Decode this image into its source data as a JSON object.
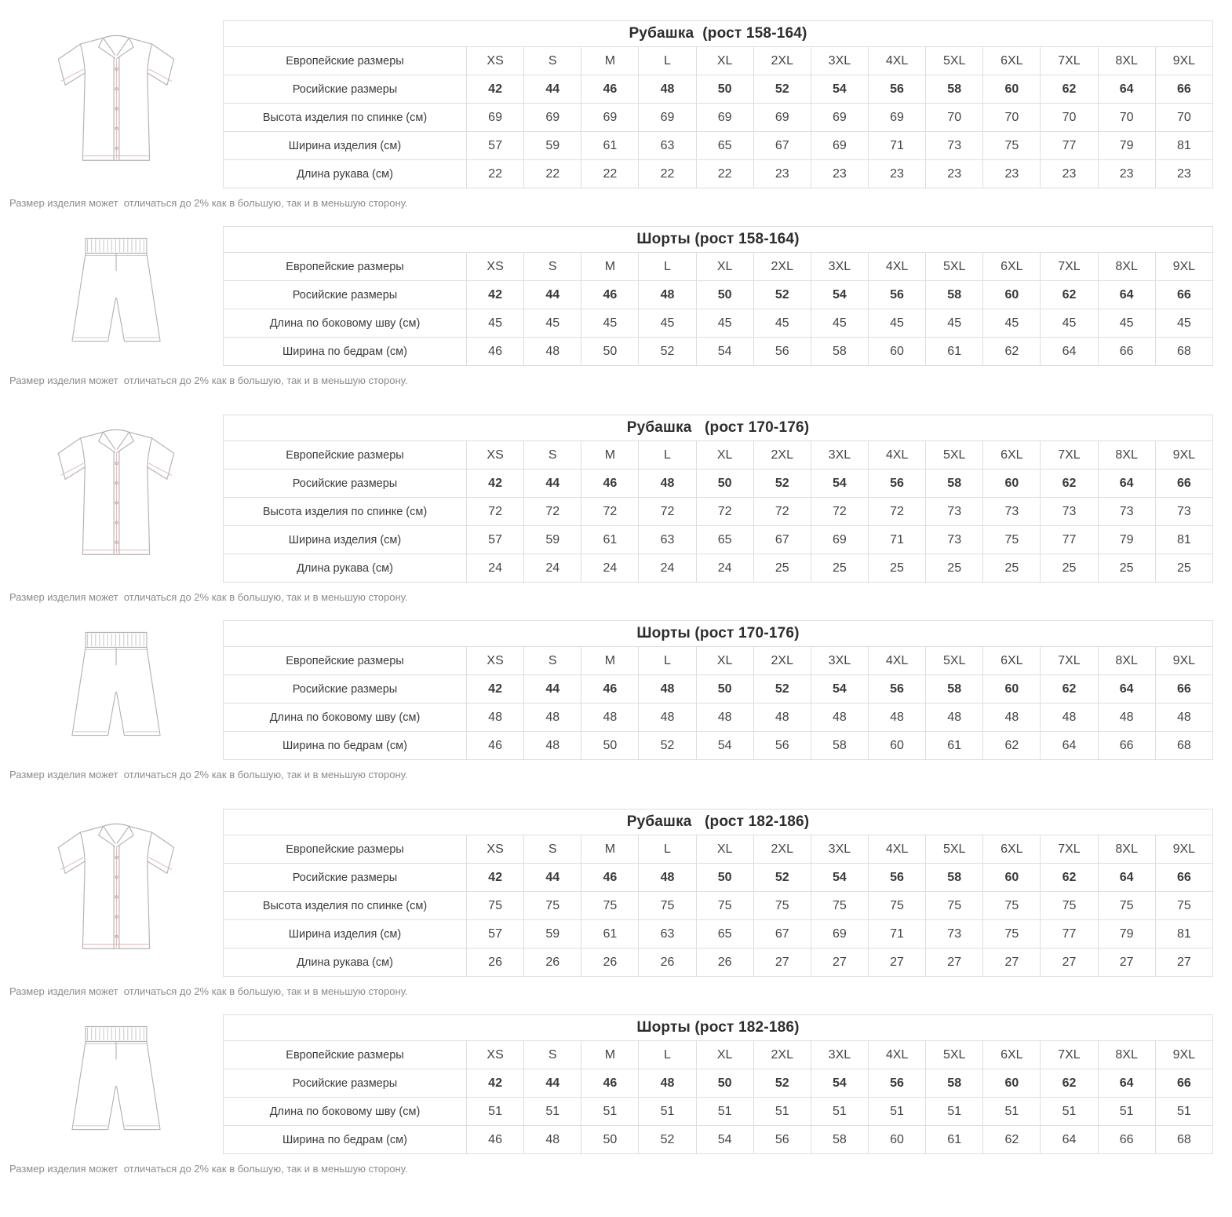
{
  "note": "Размер изделия может  отличаться до 2% как в большую, так и в меньшую сторону.",
  "size_labels": [
    "XS",
    "S",
    "M",
    "L",
    "XL",
    "2XL",
    "3XL",
    "4XL",
    "5XL",
    "6XL",
    "7XL",
    "8XL",
    "9XL"
  ],
  "tables": [
    {
      "title": "Рубашка  (рост 158-164)",
      "illustration": "shirt",
      "rows": [
        {
          "label": "Европейские размеры",
          "values": [
            "XS",
            "S",
            "M",
            "L",
            "XL",
            "2XL",
            "3XL",
            "4XL",
            "5XL",
            "6XL",
            "7XL",
            "8XL",
            "9XL"
          ]
        },
        {
          "label": "Росийские размеры",
          "values": [
            "42",
            "44",
            "46",
            "48",
            "50",
            "52",
            "54",
            "56",
            "58",
            "60",
            "62",
            "64",
            "66"
          ]
        },
        {
          "label": "Высота изделия по спинке (см)",
          "values": [
            "69",
            "69",
            "69",
            "69",
            "69",
            "69",
            "69",
            "69",
            "70",
            "70",
            "70",
            "70",
            "70"
          ]
        },
        {
          "label": "Ширина изделия (см)",
          "values": [
            "57",
            "59",
            "61",
            "63",
            "65",
            "67",
            "69",
            "71",
            "73",
            "75",
            "77",
            "79",
            "81"
          ]
        },
        {
          "label": "Длина рукава (см)",
          "values": [
            "22",
            "22",
            "22",
            "22",
            "22",
            "23",
            "23",
            "23",
            "23",
            "23",
            "23",
            "23",
            "23"
          ]
        }
      ]
    },
    {
      "title": "Шорты (рост 158-164)",
      "illustration": "shorts",
      "rows": [
        {
          "label": "Европейские размеры",
          "values": [
            "XS",
            "S",
            "M",
            "L",
            "XL",
            "2XL",
            "3XL",
            "4XL",
            "5XL",
            "6XL",
            "7XL",
            "8XL",
            "9XL"
          ]
        },
        {
          "label": "Росийские размеры",
          "values": [
            "42",
            "44",
            "46",
            "48",
            "50",
            "52",
            "54",
            "56",
            "58",
            "60",
            "62",
            "64",
            "66"
          ]
        },
        {
          "label": "Длина по боковому шву (см)",
          "values": [
            "45",
            "45",
            "45",
            "45",
            "45",
            "45",
            "45",
            "45",
            "45",
            "45",
            "45",
            "45",
            "45"
          ]
        },
        {
          "label": "Ширина по бедрам (см)",
          "values": [
            "46",
            "48",
            "50",
            "52",
            "54",
            "56",
            "58",
            "60",
            "61",
            "62",
            "64",
            "66",
            "68"
          ]
        }
      ]
    },
    {
      "title": "Рубашка   (рост 170-176)",
      "illustration": "shirt",
      "rows": [
        {
          "label": "Европейские размеры",
          "values": [
            "XS",
            "S",
            "M",
            "L",
            "XL",
            "2XL",
            "3XL",
            "4XL",
            "5XL",
            "6XL",
            "7XL",
            "8XL",
            "9XL"
          ]
        },
        {
          "label": "Росийские размеры",
          "values": [
            "42",
            "44",
            "46",
            "48",
            "50",
            "52",
            "54",
            "56",
            "58",
            "60",
            "62",
            "64",
            "66"
          ]
        },
        {
          "label": "Высота изделия по спинке (см)",
          "values": [
            "72",
            "72",
            "72",
            "72",
            "72",
            "72",
            "72",
            "72",
            "73",
            "73",
            "73",
            "73",
            "73"
          ]
        },
        {
          "label": "Ширина изделия (см)",
          "values": [
            "57",
            "59",
            "61",
            "63",
            "65",
            "67",
            "69",
            "71",
            "73",
            "75",
            "77",
            "79",
            "81"
          ]
        },
        {
          "label": "Длина рукава (см)",
          "values": [
            "24",
            "24",
            "24",
            "24",
            "24",
            "25",
            "25",
            "25",
            "25",
            "25",
            "25",
            "25",
            "25"
          ]
        }
      ]
    },
    {
      "title": "Шорты (рост 170-176)",
      "illustration": "shorts",
      "rows": [
        {
          "label": "Европейские размеры",
          "values": [
            "XS",
            "S",
            "M",
            "L",
            "XL",
            "2XL",
            "3XL",
            "4XL",
            "5XL",
            "6XL",
            "7XL",
            "8XL",
            "9XL"
          ]
        },
        {
          "label": "Росийские размеры",
          "values": [
            "42",
            "44",
            "46",
            "48",
            "50",
            "52",
            "54",
            "56",
            "58",
            "60",
            "62",
            "64",
            "66"
          ]
        },
        {
          "label": "Длина по боковому шву (см)",
          "values": [
            "48",
            "48",
            "48",
            "48",
            "48",
            "48",
            "48",
            "48",
            "48",
            "48",
            "48",
            "48",
            "48"
          ]
        },
        {
          "label": "Ширина по бедрам (см)",
          "values": [
            "46",
            "48",
            "50",
            "52",
            "54",
            "56",
            "58",
            "60",
            "61",
            "62",
            "64",
            "66",
            "68"
          ]
        }
      ]
    },
    {
      "title": "Рубашка   (рост 182-186)",
      "illustration": "shirt",
      "rows": [
        {
          "label": "Европейские размеры",
          "values": [
            "XS",
            "S",
            "M",
            "L",
            "XL",
            "2XL",
            "3XL",
            "4XL",
            "5XL",
            "6XL",
            "7XL",
            "8XL",
            "9XL"
          ]
        },
        {
          "label": "Росийские размеры",
          "values": [
            "42",
            "44",
            "46",
            "48",
            "50",
            "52",
            "54",
            "56",
            "58",
            "60",
            "62",
            "64",
            "66"
          ]
        },
        {
          "label": "Высота изделия по спинке (см)",
          "values": [
            "75",
            "75",
            "75",
            "75",
            "75",
            "75",
            "75",
            "75",
            "75",
            "75",
            "75",
            "75",
            "75"
          ]
        },
        {
          "label": "Ширина изделия (см)",
          "values": [
            "57",
            "59",
            "61",
            "63",
            "65",
            "67",
            "69",
            "71",
            "73",
            "75",
            "77",
            "79",
            "81"
          ]
        },
        {
          "label": "Длина рукава (см)",
          "values": [
            "26",
            "26",
            "26",
            "26",
            "26",
            "27",
            "27",
            "27",
            "27",
            "27",
            "27",
            "27",
            "27"
          ]
        }
      ]
    },
    {
      "title": "Шорты (рост 182-186)",
      "illustration": "shorts",
      "rows": [
        {
          "label": "Европейские размеры",
          "values": [
            "XS",
            "S",
            "M",
            "L",
            "XL",
            "2XL",
            "3XL",
            "4XL",
            "5XL",
            "6XL",
            "7XL",
            "8XL",
            "9XL"
          ]
        },
        {
          "label": "Росийские размеры",
          "values": [
            "42",
            "44",
            "46",
            "48",
            "50",
            "52",
            "54",
            "56",
            "58",
            "60",
            "62",
            "64",
            "66"
          ]
        },
        {
          "label": "Длина по боковому шву (см)",
          "values": [
            "51",
            "51",
            "51",
            "51",
            "51",
            "51",
            "51",
            "51",
            "51",
            "51",
            "51",
            "51",
            "51"
          ]
        },
        {
          "label": "Ширина по бедрам (см)",
          "values": [
            "46",
            "48",
            "50",
            "52",
            "54",
            "56",
            "58",
            "60",
            "61",
            "62",
            "64",
            "66",
            "68"
          ]
        }
      ]
    }
  ]
}
